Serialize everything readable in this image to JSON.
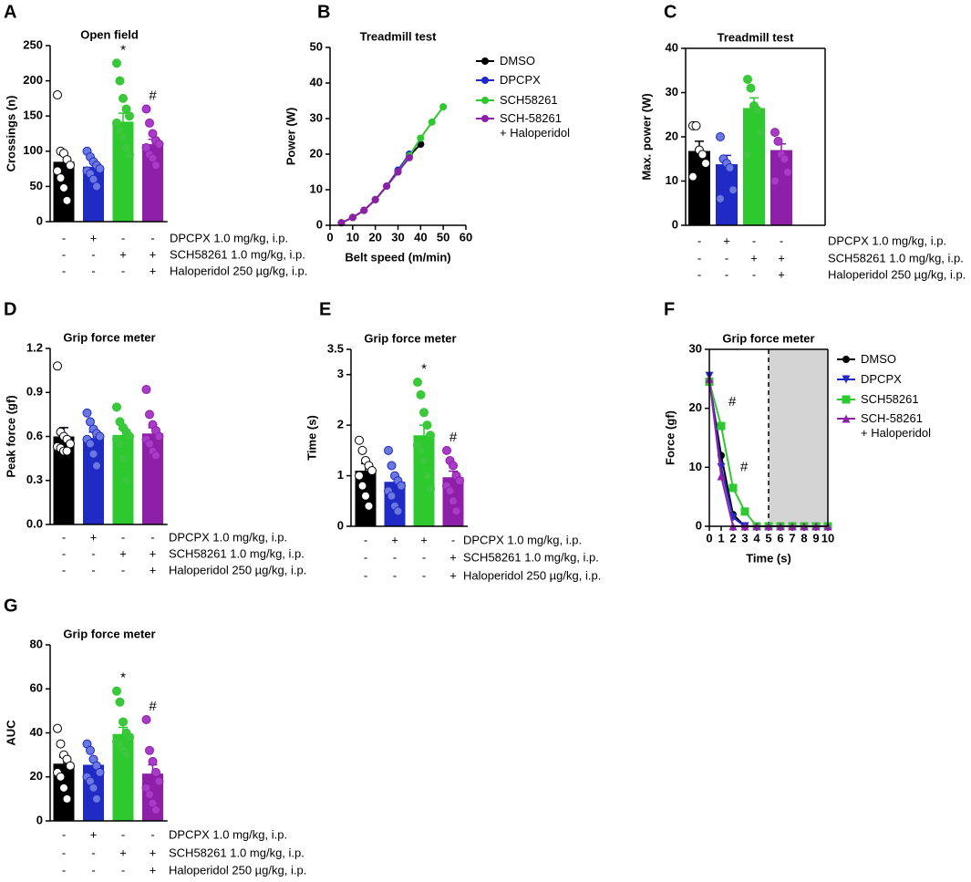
{
  "chart_data": [
    {
      "type": "bar",
      "panel": "A",
      "title": "Open field",
      "ylabel": "Crossings (n)",
      "ylim": [
        0,
        250
      ],
      "yticks": [
        0,
        50,
        100,
        150,
        200,
        250
      ],
      "values": [
        85,
        78,
        142,
        110
      ],
      "errors": [
        12,
        8,
        12,
        7
      ],
      "colors": [
        "#000000",
        "#1f2bc4",
        "#2ec92e",
        "#8e1fa8"
      ],
      "point_colors": [
        "#ffffff",
        "#6a78e0",
        "#3cc83c",
        "#a83cc8"
      ],
      "points": [
        [
          180,
          100,
          97,
          88,
          80,
          72,
          62,
          48,
          30
        ],
        [
          100,
          92,
          85,
          80,
          75,
          72,
          68,
          60,
          50
        ],
        [
          225,
          200,
          175,
          160,
          150,
          140,
          130,
          120,
          105,
          95
        ],
        [
          160,
          140,
          125,
          115,
          110,
          105,
          95,
          90,
          80
        ]
      ],
      "annotations": [
        null,
        null,
        "*",
        "#"
      ],
      "treatments": [
        {
          "label": "DPCPX 1.0 mg/kg, i.p.",
          "signs": [
            "-",
            "+",
            "-",
            "-"
          ]
        },
        {
          "label": "SCH58261 1.0 mg/kg, i.p.",
          "signs": [
            "-",
            "-",
            "+",
            "+"
          ]
        },
        {
          "label": "Haloperidol 250 µg/kg, i.p.",
          "signs": [
            "-",
            "-",
            "-",
            "+"
          ]
        }
      ]
    },
    {
      "type": "line",
      "panel": "B",
      "title": "Treadmill test",
      "xlabel": "Belt speed (m/min)",
      "ylabel": "Power (W)",
      "xlim": [
        0,
        60
      ],
      "xticks": [
        0,
        10,
        20,
        30,
        40,
        50,
        60
      ],
      "ylim": [
        0,
        50
      ],
      "yticks": [
        0,
        10,
        20,
        30,
        40,
        50
      ],
      "x": [
        5,
        10,
        15,
        20,
        25,
        30,
        35,
        40,
        45,
        50
      ],
      "series": [
        {
          "name": "DMSO",
          "color": "#000000",
          "marker": "circle",
          "values": [
            0.7,
            2.2,
            4.2,
            7.2,
            11.0,
            15.0,
            19.5,
            22.8,
            null,
            null
          ]
        },
        {
          "name": "DPCPX",
          "color": "#1f2bc4",
          "marker": "circle",
          "values": [
            0.7,
            2.2,
            4.2,
            7.2,
            11.0,
            15.5,
            20.0,
            null,
            null,
            null
          ]
        },
        {
          "name": "SCH58261",
          "color": "#2ec92e",
          "marker": "circle",
          "values": [
            0.7,
            2.2,
            4.2,
            7.2,
            11.0,
            15.0,
            19.5,
            24.5,
            29.0,
            33.3
          ]
        },
        {
          "name": "SCH-58261\n+ Haloperidol",
          "color": "#8e1fa8",
          "marker": "circle",
          "values": [
            0.7,
            2.2,
            4.2,
            7.2,
            11.0,
            15.0,
            19.0,
            null,
            null,
            null
          ]
        }
      ]
    },
    {
      "type": "bar",
      "panel": "C",
      "title": "Treadmill test",
      "ylabel": "Max. power (W)",
      "ylim": [
        0,
        40
      ],
      "yticks": [
        0,
        10,
        20,
        30,
        40
      ],
      "values": [
        16.8,
        13.8,
        26.5,
        17.0
      ],
      "errors": [
        2.2,
        2.0,
        2.3,
        1.4
      ],
      "colors": [
        "#000000",
        "#1f2bc4",
        "#2ec92e",
        "#8e1fa8"
      ],
      "point_colors": [
        "#ffffff",
        "#6a78e0",
        "#3cc83c",
        "#a83cc8"
      ],
      "points": [
        [
          22.5,
          22.5,
          17,
          16,
          14,
          11
        ],
        [
          20,
          15,
          14,
          13,
          8,
          6
        ],
        [
          33,
          31,
          27,
          26,
          21,
          16
        ],
        [
          21,
          19,
          16,
          15,
          12,
          10
        ]
      ],
      "annotations": [
        null,
        null,
        null,
        null
      ],
      "treatments": [
        {
          "label": "DPCPX 1.0 mg/kg, i.p.",
          "signs": [
            "-",
            "+",
            "-",
            "-"
          ]
        },
        {
          "label": "SCH58261 1.0 mg/kg, i.p.",
          "signs": [
            "-",
            "-",
            "+",
            "+"
          ]
        },
        {
          "label": "Haloperidol 250 µg/kg, i.p.",
          "signs": [
            "-",
            "-",
            "-",
            "+"
          ]
        }
      ]
    },
    {
      "type": "bar",
      "panel": "D",
      "title": "Grip force meter",
      "ylabel": "Peak force (gf)",
      "ylim": [
        0,
        1.2
      ],
      "yticks": [
        {
          "value": 0,
          "label": "0.0"
        },
        0.3,
        0.6,
        0.9,
        1.2
      ],
      "values": [
        0.6,
        0.59,
        0.61,
        0.62
      ],
      "errors": [
        0.06,
        0.04,
        0.04,
        0.04
      ],
      "colors": [
        "#000000",
        "#1f2bc4",
        "#2ec92e",
        "#8e1fa8"
      ],
      "point_colors": [
        "#ffffff",
        "#6a78e0",
        "#3cc83c",
        "#a83cc8"
      ],
      "points": [
        [
          1.08,
          0.63,
          0.6,
          0.58,
          0.55,
          0.53,
          0.52,
          0.5,
          0.5
        ],
        [
          0.76,
          0.7,
          0.65,
          0.62,
          0.6,
          0.58,
          0.55,
          0.48,
          0.4
        ],
        [
          0.8,
          0.7,
          0.66,
          0.63,
          0.6,
          0.58,
          0.55,
          0.45,
          0.3
        ],
        [
          0.92,
          0.75,
          0.68,
          0.64,
          0.6,
          0.58,
          0.55,
          0.5,
          0.47
        ]
      ],
      "annotations": [
        null,
        null,
        null,
        null
      ],
      "treatments": [
        {
          "label": "DPCPX 1.0 mg/kg, i.p.",
          "signs": [
            "-",
            "+",
            "-",
            "-"
          ]
        },
        {
          "label": "SCH58261 1.0 mg/kg, i.p.",
          "signs": [
            "-",
            "-",
            "+",
            "+"
          ]
        },
        {
          "label": "Haloperidol 250 µg/kg, i.p.",
          "signs": [
            "-",
            "-",
            "-",
            "+"
          ]
        }
      ]
    },
    {
      "type": "bar",
      "panel": "E",
      "title": "Grip force meter",
      "ylabel": "Time (s)",
      "ylim": [
        0,
        3.5
      ],
      "yticks": [
        0,
        1,
        2,
        3,
        3.5
      ],
      "values": [
        1.1,
        0.88,
        1.8,
        0.97
      ],
      "errors": [
        0.14,
        0.12,
        0.2,
        0.12
      ],
      "colors": [
        "#000000",
        "#1f2bc4",
        "#2ec92e",
        "#8e1fa8"
      ],
      "point_colors": [
        "#ffffff",
        "#6a78e0",
        "#3cc83c",
        "#a83cc8"
      ],
      "points": [
        [
          1.7,
          1.5,
          1.3,
          1.2,
          1.1,
          1.0,
          0.8,
          0.6,
          0.4
        ],
        [
          1.5,
          1.2,
          1.0,
          0.9,
          0.8,
          0.7,
          0.6,
          0.4,
          0.3
        ],
        [
          2.85,
          2.6,
          2.25,
          2.0,
          1.8,
          1.6,
          1.5,
          1.3,
          1.0,
          0.75
        ],
        [
          1.5,
          1.3,
          1.2,
          1.0,
          0.9,
          0.8,
          0.7,
          0.5,
          0.3
        ]
      ],
      "annotations": [
        null,
        null,
        "*",
        "#"
      ],
      "treatments": [
        {
          "label": "DPCPX 1.0 mg/kg, i.p.",
          "signs": [
            "-",
            "+",
            "+",
            "-"
          ]
        },
        {
          "label": "SCH58261 1.0 mg/kg, i.p.",
          "signs": [
            "-",
            "-",
            "-",
            "+"
          ]
        },
        {
          "label": "Haloperidol 250 µg/kg, i.p.",
          "signs": [
            "-",
            "-",
            "-",
            "+"
          ]
        }
      ]
    },
    {
      "type": "line",
      "panel": "F",
      "title": "Grip force meter",
      "xlabel": "Time (s)",
      "ylabel": "Force (gf)",
      "xlim": [
        0,
        10
      ],
      "xticks": [
        0,
        1,
        2,
        3,
        4,
        5,
        6,
        7,
        8,
        9,
        10
      ],
      "ylim": [
        0,
        30
      ],
      "yticks": [
        0,
        10,
        20,
        30
      ],
      "shaded_region": [
        5,
        10
      ],
      "x": [
        0,
        1,
        2,
        3,
        4,
        5,
        6,
        7,
        8,
        9,
        10
      ],
      "series": [
        {
          "name": "DMSO",
          "color": "#000000",
          "marker": "circle",
          "values": [
            24.5,
            12,
            2,
            0,
            0,
            0,
            0,
            0,
            0,
            0,
            0
          ]
        },
        {
          "name": "DPCPX",
          "color": "#1f2bc4",
          "marker": "triangle-down",
          "values": [
            25.5,
            10,
            1.5,
            0,
            0,
            0,
            0,
            0,
            0,
            0,
            0
          ]
        },
        {
          "name": "SCH58261",
          "color": "#2ec92e",
          "marker": "square",
          "values": [
            24.5,
            17,
            6.5,
            2.5,
            0,
            0,
            0,
            0,
            0,
            0,
            0
          ]
        },
        {
          "name": "SCH-58261\n+ Haloperidol",
          "color": "#8e1fa8",
          "marker": "triangle-up",
          "values": [
            25,
            8.5,
            0,
            0,
            0,
            0,
            0,
            0,
            0,
            0,
            0
          ]
        }
      ],
      "annotations": [
        {
          "text": "#",
          "x": 1,
          "y": 21
        },
        {
          "text": "#",
          "x": 2,
          "y": 10
        }
      ]
    },
    {
      "type": "bar",
      "panel": "G",
      "title": "Grip force meter",
      "ylabel": "AUC",
      "ylim": [
        0,
        80
      ],
      "yticks": [
        0,
        20,
        40,
        60,
        80
      ],
      "values": [
        26,
        25.5,
        39.5,
        21.5
      ],
      "errors": [
        3,
        2.5,
        3,
        4
      ],
      "colors": [
        "#000000",
        "#1f2bc4",
        "#2ec92e",
        "#8e1fa8"
      ],
      "point_colors": [
        "#ffffff",
        "#6a78e0",
        "#3cc83c",
        "#a83cc8"
      ],
      "points": [
        [
          42,
          35,
          30,
          28,
          25,
          22,
          20,
          15,
          10
        ],
        [
          35,
          32,
          28,
          25,
          22,
          20,
          18,
          15,
          10
        ],
        [
          59,
          54,
          45,
          40,
          38,
          36,
          35,
          32,
          30
        ],
        [
          46,
          32,
          27,
          22,
          18,
          15,
          12,
          8,
          5
        ]
      ],
      "annotations": [
        null,
        null,
        "*",
        "#"
      ],
      "treatments": [
        {
          "label": "DPCPX 1.0 mg/kg, i.p.",
          "signs": [
            "-",
            "+",
            "-",
            "-"
          ]
        },
        {
          "label": "SCH58261 1.0 mg/kg, i.p.",
          "signs": [
            "-",
            "-",
            "+",
            "+"
          ]
        },
        {
          "label": "Haloperidol 250 µg/kg, i.p.",
          "signs": [
            "-",
            "-",
            "-",
            "+"
          ]
        }
      ]
    }
  ]
}
